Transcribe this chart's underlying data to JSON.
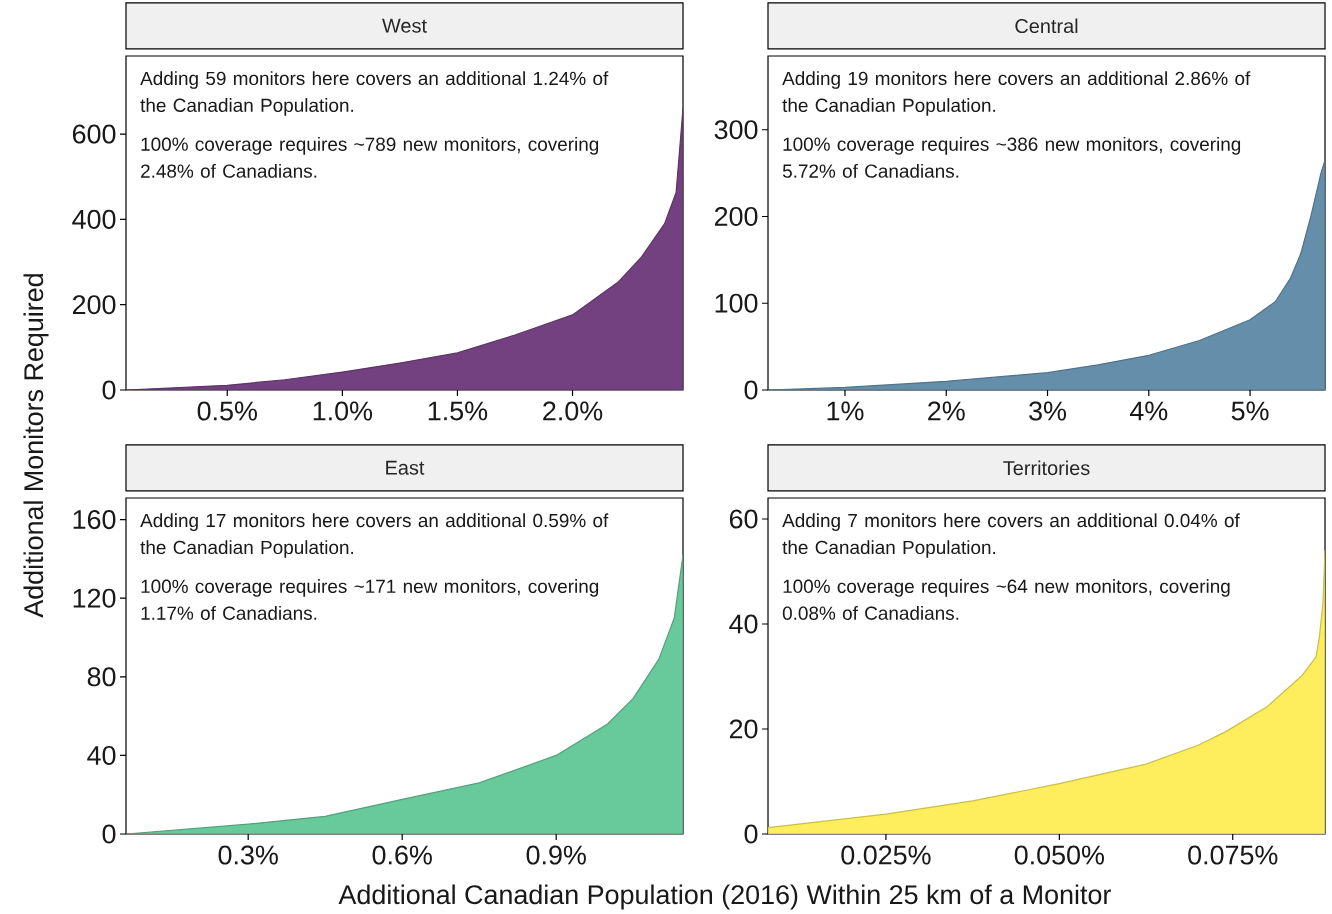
{
  "chart_data": [
    {
      "type": "area",
      "title": "West",
      "ylabel": "Additional Monitors Required",
      "annotations": [
        "Adding 59 monitors here covers an additional 1.24% of the Canadian Population.",
        "100% coverage requires ~789 new monitors, covering 2.48% of Canadians."
      ],
      "xlim": [
        0.06,
        2.48
      ],
      "ylim": [
        0,
        783
      ],
      "xticks": [
        {
          "value": 0.5,
          "label": "0.5%"
        },
        {
          "value": 1.0,
          "label": "1.0%"
        },
        {
          "value": 1.5,
          "label": "1.5%"
        },
        {
          "value": 2.0,
          "label": "2.0%"
        }
      ],
      "yticks": [
        0,
        200,
        400,
        600
      ],
      "series": [
        {
          "color": "#73417f",
          "x": [
            0.06,
            0.5,
            0.75,
            1.0,
            1.25,
            1.5,
            1.75,
            2.0,
            2.2,
            2.3,
            2.4,
            2.45,
            2.48
          ],
          "values": [
            0,
            11,
            24,
            42,
            63,
            87,
            129,
            176,
            254,
            312,
            390,
            463,
            660
          ]
        }
      ]
    },
    {
      "type": "area",
      "title": "Central",
      "annotations": [
        "Adding 19 monitors here covers an additional 2.86% of the Canadian Population.",
        "100% coverage requires ~386 new monitors, covering 5.72% of Canadians."
      ],
      "xlim": [
        0.24,
        5.74
      ],
      "ylim": [
        0,
        385
      ],
      "xticks": [
        {
          "value": 1,
          "label": "1%"
        },
        {
          "value": 2,
          "label": "2%"
        },
        {
          "value": 3,
          "label": "3%"
        },
        {
          "value": 4,
          "label": "4%"
        },
        {
          "value": 5,
          "label": "5%"
        }
      ],
      "yticks": [
        0,
        100,
        200,
        300
      ],
      "series": [
        {
          "color": "#658eaa",
          "x": [
            0.24,
            1,
            2,
            3,
            3.5,
            4,
            4.5,
            5,
            5.25,
            5.4,
            5.5,
            5.6,
            5.7,
            5.74
          ],
          "values": [
            0,
            3,
            10,
            20,
            29,
            40,
            57,
            81,
            102,
            129,
            157,
            200,
            250,
            265
          ]
        }
      ]
    },
    {
      "type": "area",
      "title": "East",
      "xlabel": "Additional Canadian Population (2016) Within 25 km of a Monitor",
      "annotations": [
        "Adding 17 monitors here covers an additional 0.59% of the Canadian Population.",
        "100% coverage requires ~171 new monitors, covering 1.17% of Canadians."
      ],
      "xlim": [
        0.062,
        1.147
      ],
      "ylim": [
        0,
        171
      ],
      "xticks": [
        {
          "value": 0.3,
          "label": "0.3%"
        },
        {
          "value": 0.6,
          "label": "0.6%"
        },
        {
          "value": 0.9,
          "label": "0.9%"
        }
      ],
      "yticks": [
        0,
        40,
        80,
        120,
        160
      ],
      "series": [
        {
          "color": "#68c99b",
          "x": [
            0.062,
            0.3,
            0.45,
            0.6,
            0.75,
            0.9,
            1.0,
            1.05,
            1.1,
            1.13,
            1.147
          ],
          "values": [
            0,
            5,
            9,
            17.6,
            26,
            40,
            56,
            69,
            89,
            110,
            142
          ]
        }
      ]
    },
    {
      "type": "area",
      "title": "Territories",
      "annotations": [
        "Adding 7 monitors here covers an additional 0.04% of the Canadian Population.",
        "100% coverage requires ~64 new monitors, covering 0.08% of Canadians."
      ],
      "xlim": [
        0.008,
        0.0883
      ],
      "ylim": [
        0,
        64
      ],
      "xticks": [
        {
          "value": 0.025,
          "label": "0.025%"
        },
        {
          "value": 0.05,
          "label": "0.050%"
        },
        {
          "value": 0.075,
          "label": "0.075%"
        }
      ],
      "yticks": [
        0,
        20,
        40,
        60
      ],
      "series": [
        {
          "color": "#feed5c",
          "x": [
            0.008,
            0.025,
            0.0375,
            0.05,
            0.0625,
            0.07,
            0.074,
            0.08,
            0.085,
            0.087,
            0.0875,
            0.088,
            0.0883
          ],
          "values": [
            1.2,
            3.8,
            6.3,
            9.6,
            13.3,
            16.9,
            19.5,
            24.3,
            30.2,
            33.7,
            37.6,
            44,
            54
          ]
        }
      ]
    }
  ]
}
